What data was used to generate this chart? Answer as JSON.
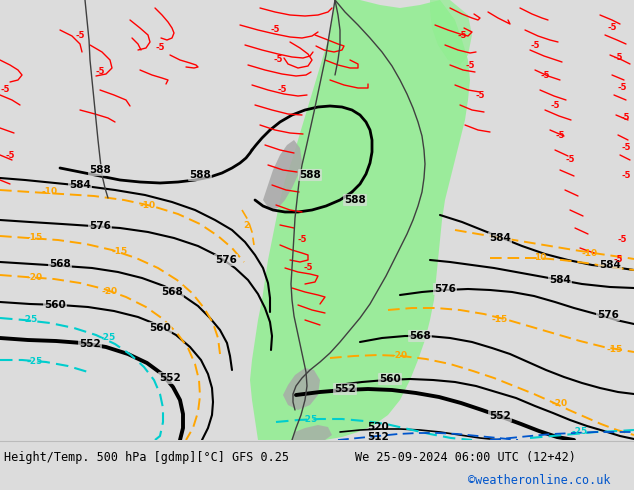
{
  "title_left": "Height/Temp. 500 hPa [gdmp][°C] GFS 0.25",
  "title_right": "We 25-09-2024 06:00 UTC (12+42)",
  "watermark": "©weatheronline.co.uk",
  "bg_color": "#dcdcdc",
  "footer_bg": "#f0f0f0",
  "green_fill": "#90ee90",
  "gray_fill": "#a8a8a8",
  "black": "#000000",
  "orange": "#ffa500",
  "cyan": "#00cdcd",
  "red": "#ff0000",
  "blue": "#0055cc",
  "dark_gray": "#505050"
}
